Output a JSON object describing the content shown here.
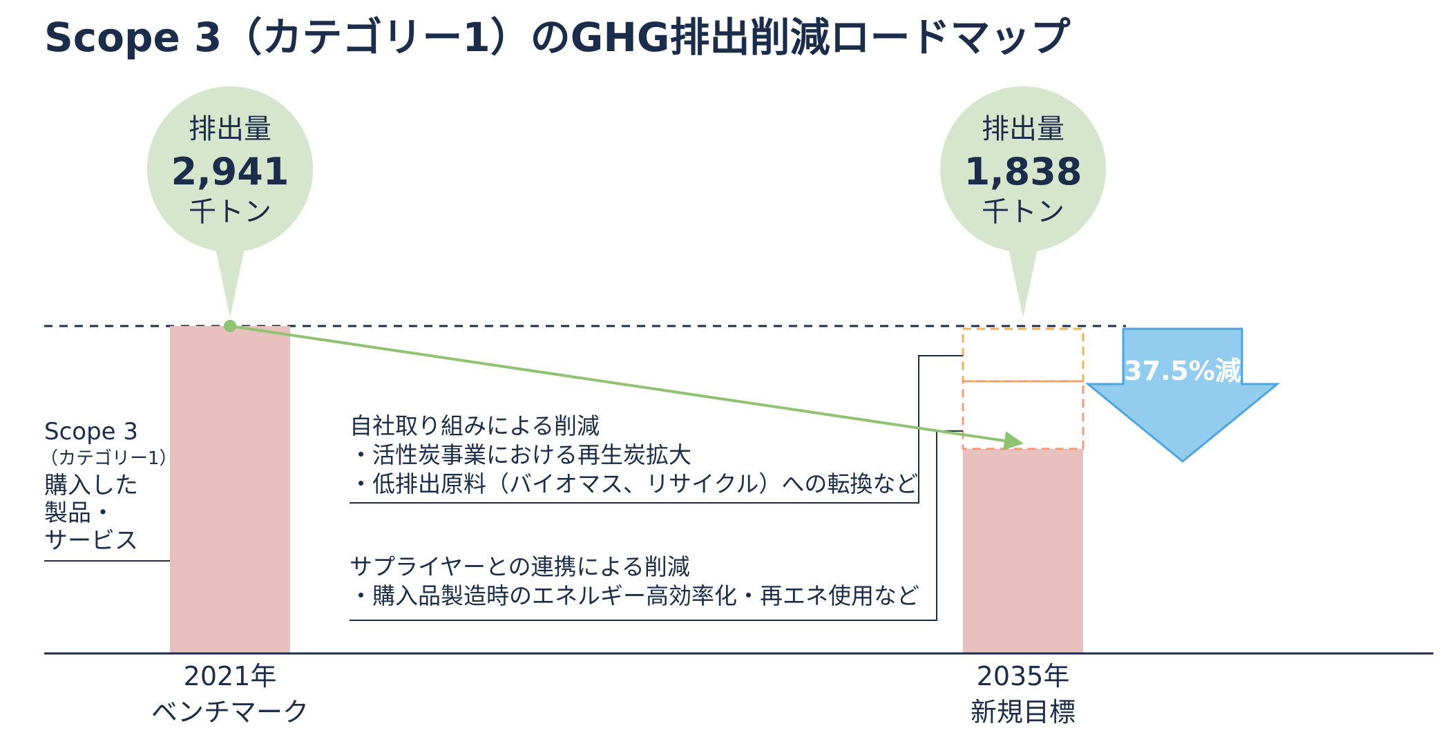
{
  "chart_data": {
    "type": "bar",
    "title": "Scope 3（カテゴリー1）のGHG排出削減ロードマップ",
    "categories": [
      {
        "year": "2021年",
        "label": "ベンチマーク"
      },
      {
        "year": "2035年",
        "label": "新規目標"
      }
    ],
    "values": [
      2941,
      1838
    ],
    "unit": "千トン",
    "bubble_label": "排出量",
    "value_labels": [
      "2,941",
      "1,838"
    ],
    "ylim": [
      0,
      2941
    ],
    "reduction": {
      "percent_label": "37.5%減"
    },
    "category_label": {
      "line1": "Scope 3",
      "line2": "（カテゴリー1）",
      "line3": "購入した",
      "line4": "製品・",
      "line5": "サービス"
    },
    "annotations": [
      {
        "heading": "自社取り組みによる削減",
        "bullets": [
          "・活性炭事業における再生炭拡大",
          "・低排出原料（バイオマス、リサイクル）への転換など"
        ]
      },
      {
        "heading": "サプライヤーとの連携による削減",
        "bullets": [
          "・購入品製造時のエネルギー高効率化・再エネ使用など"
        ]
      }
    ],
    "colors": {
      "bar": "#e8c0be",
      "bubble": "#d6e6cc",
      "arrow": "#8fc271",
      "reduction_fill": "#92ccef",
      "reduction_stroke": "#4ea4e0",
      "dash_upper": "#efb15a",
      "dash_lower": "#ef9b7c",
      "text": "#1b2d4a"
    }
  }
}
